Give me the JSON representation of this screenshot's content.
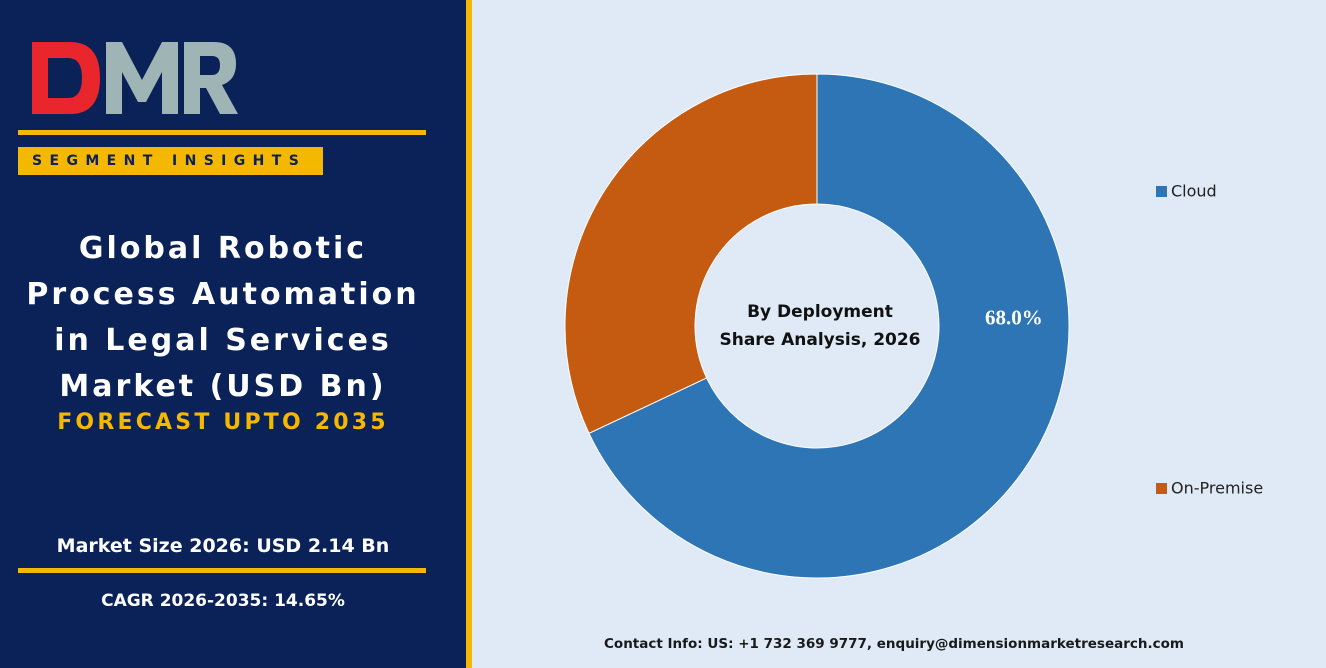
{
  "brand": {
    "logo_text": "DMR",
    "logo_colors": {
      "D": "#e8262b",
      "M": "#9fb4b4",
      "R": "#9fb4b4"
    }
  },
  "left_panel": {
    "badge": "SEGMENT INSIGHTS",
    "title_lines": [
      "Global Robotic",
      "Process Automation",
      "in Legal Services",
      "Market (USD Bn)"
    ],
    "forecast": "FORECAST UPTO 2035",
    "market_size": "Market Size 2026: USD 2.14 Bn",
    "cagr": "CAGR 2026-2035: 14.65%"
  },
  "chart_data": {
    "type": "pie",
    "donut": true,
    "center_label_lines": [
      "By Deployment",
      "Share Analysis, 2026"
    ],
    "slices": [
      {
        "label": "Cloud",
        "value": 68.0,
        "color": "#2e75b6",
        "data_label": "68.0%"
      },
      {
        "label": "On-Premise",
        "value": 32.0,
        "color": "#c55a11",
        "data_label": ""
      }
    ],
    "legend_position": "right"
  },
  "footer": {
    "contact": "Contact Info: US: +1 732 369 9777, enquiry@dimensionmarketresearch.com"
  },
  "colors": {
    "navy": "#0b2259",
    "gold": "#f5b800",
    "background": "#dfeaf6"
  }
}
